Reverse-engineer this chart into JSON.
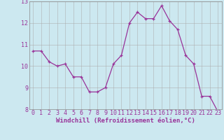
{
  "x": [
    0,
    1,
    2,
    3,
    4,
    5,
    6,
    7,
    8,
    9,
    10,
    11,
    12,
    13,
    14,
    15,
    16,
    17,
    18,
    19,
    20,
    21,
    22,
    23
  ],
  "y": [
    10.7,
    10.7,
    10.2,
    10.0,
    10.1,
    9.5,
    9.5,
    8.8,
    8.8,
    9.0,
    10.1,
    10.5,
    12.0,
    12.5,
    12.2,
    12.2,
    12.8,
    12.1,
    11.7,
    10.5,
    10.1,
    8.6,
    8.6,
    7.9
  ],
  "line_color": "#993399",
  "marker_color": "#993399",
  "bg_color": "#cce8f0",
  "grid_color": "#aaaaaa",
  "xlabel": "Windchill (Refroidissement éolien,°C)",
  "xlabel_color": "#993399",
  "tick_color": "#993399",
  "ylim": [
    8,
    13
  ],
  "xlim_min": -0.5,
  "xlim_max": 23.5,
  "yticks": [
    8,
    9,
    10,
    11,
    12,
    13
  ],
  "xticks": [
    0,
    1,
    2,
    3,
    4,
    5,
    6,
    7,
    8,
    9,
    10,
    11,
    12,
    13,
    14,
    15,
    16,
    17,
    18,
    19,
    20,
    21,
    22,
    23
  ],
  "figsize": [
    3.2,
    2.0
  ],
  "dpi": 100,
  "label_fontsize": 6.5,
  "tick_fontsize": 6
}
